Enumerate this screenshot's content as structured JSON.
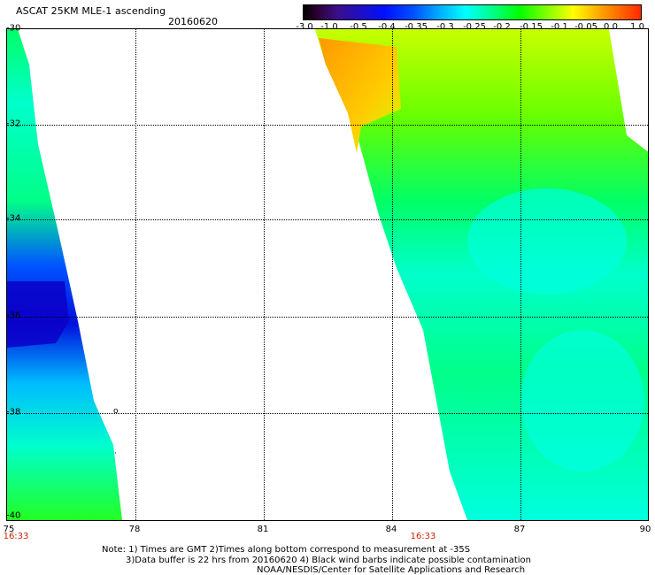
{
  "header": {
    "title": "ASCAT 25KM MLE-1 ascending",
    "date": "20160620"
  },
  "colorbar": {
    "labels": [
      "-3.0",
      "-1.0",
      "-0.5",
      "-0.4",
      "-0.35",
      "-0.3",
      "-0.25",
      "-0.2",
      "-0.15",
      "-0.1",
      "-0.05",
      "0.0",
      "1.0"
    ]
  },
  "axes": {
    "lat_labels": [
      "-30",
      "-32",
      "-34",
      "-36",
      "-38",
      "-40"
    ],
    "lon_labels": [
      "75",
      "78",
      "81",
      "84",
      "87",
      "90"
    ],
    "time_labels": [
      "16:33",
      "16:33"
    ]
  },
  "notes": {
    "line1": "Note: 1) Times are GMT 2)Times along bottom correspond to measurement at -35S",
    "line2": "3)Data buffer is 22 hrs from 20160620 4) Black wind barbs indicate possible contamination",
    "line3": "NOAA/NESDIS/Center for Satellite Applications and Research"
  },
  "colors": {
    "cyan": "#00ffff",
    "green": "#00ff00",
    "yellow": "#ffff00",
    "orange": "#ffa500",
    "blue": "#0010ff"
  }
}
